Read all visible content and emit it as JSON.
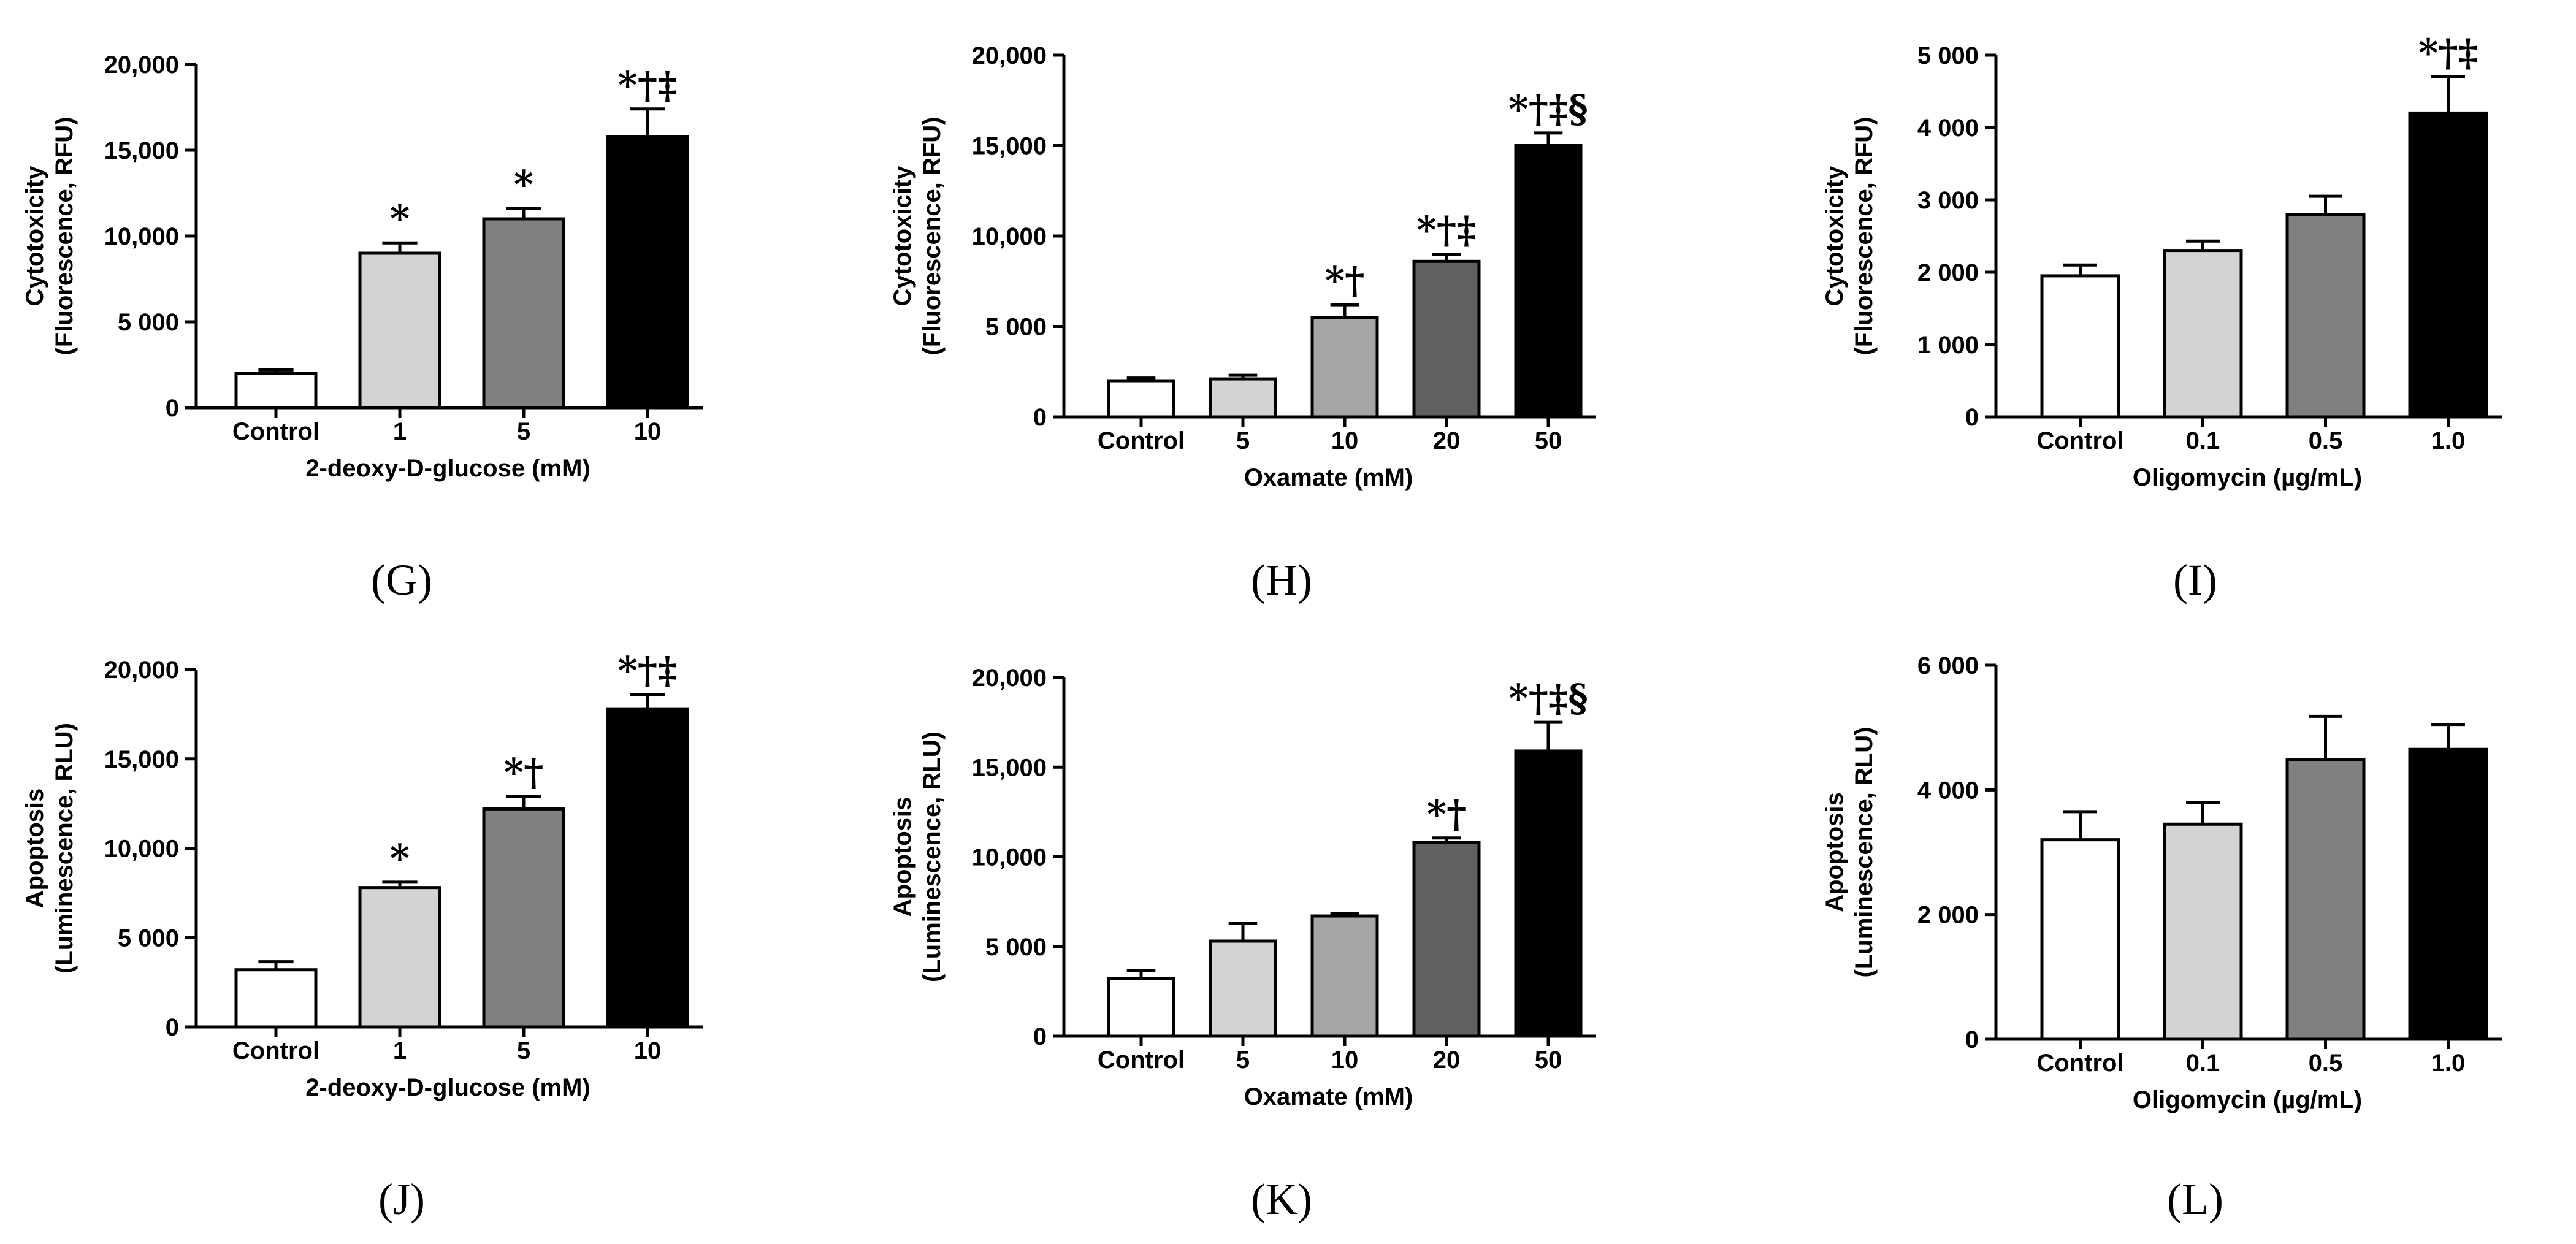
{
  "chart_data": [
    {
      "type": "bar",
      "panel": "(G)",
      "ylabel_line1": "Cytotoxicity",
      "ylabel_line2": "(Fluorescence, RFU)",
      "xlabel": "2-deoxy-D-glucose (mM)",
      "categories": [
        "Control",
        "1",
        "5",
        "10"
      ],
      "values": [
        2000,
        9000,
        11000,
        15800
      ],
      "errors": [
        200,
        600,
        600,
        1600
      ],
      "annotations": [
        "",
        "*",
        "*",
        "*†‡"
      ],
      "colors": [
        "#ffffff",
        "#d3d3d3",
        "#808080",
        "#000000"
      ],
      "ylim": [
        0,
        20000
      ],
      "yticks": [
        0,
        5000,
        10000,
        15000,
        20000
      ],
      "ytick_labels": [
        "0",
        "5 000",
        "10,000",
        "15,000",
        "20,000"
      ]
    },
    {
      "type": "bar",
      "panel": "(H)",
      "ylabel_line1": "Cytotoxicity",
      "ylabel_line2": "(Fluorescence, RFU)",
      "xlabel": "Oxamate (mM)",
      "categories": [
        "Control",
        "5",
        "10",
        "20",
        "50"
      ],
      "values": [
        2000,
        2100,
        5500,
        8600,
        15000
      ],
      "errors": [
        150,
        200,
        700,
        400,
        700
      ],
      "annotations": [
        "",
        "",
        "*†",
        "*†‡",
        "*†‡§"
      ],
      "colors": [
        "#ffffff",
        "#d3d3d3",
        "#a6a6a6",
        "#606060",
        "#000000"
      ],
      "ylim": [
        0,
        20000
      ],
      "yticks": [
        0,
        5000,
        10000,
        15000,
        20000
      ],
      "ytick_labels": [
        "0",
        "5 000",
        "10,000",
        "15,000",
        "20,000"
      ]
    },
    {
      "type": "bar",
      "panel": "(I)",
      "ylabel_line1": "Cytotoxicity",
      "ylabel_line2": "(Fluorescence, RFU)",
      "xlabel": "Oligomycin (µg/mL)",
      "categories": [
        "Control",
        "0.1",
        "0.5",
        "1.0"
      ],
      "values": [
        1950,
        2300,
        2800,
        4200
      ],
      "errors": [
        150,
        130,
        250,
        500
      ],
      "annotations": [
        "",
        "",
        "",
        "*†‡"
      ],
      "colors": [
        "#ffffff",
        "#d3d3d3",
        "#808080",
        "#000000"
      ],
      "ylim": [
        0,
        5000
      ],
      "yticks": [
        0,
        1000,
        2000,
        3000,
        4000,
        5000
      ],
      "ytick_labels": [
        "0",
        "1 000",
        "2 000",
        "3 000",
        "4 000",
        "5 000"
      ]
    },
    {
      "type": "bar",
      "panel": "(J)",
      "ylabel_line1": "Apoptosis",
      "ylabel_line2": "(Luminescence, RLU)",
      "xlabel": "2-deoxy-D-glucose (mM)",
      "categories": [
        "Control",
        "1",
        "5",
        "10"
      ],
      "values": [
        3200,
        7800,
        12200,
        17800
      ],
      "errors": [
        450,
        300,
        700,
        800
      ],
      "annotations": [
        "",
        "*",
        "*†",
        "*†‡"
      ],
      "colors": [
        "#ffffff",
        "#d3d3d3",
        "#808080",
        "#000000"
      ],
      "ylim": [
        0,
        20000
      ],
      "yticks": [
        0,
        5000,
        10000,
        15000,
        20000
      ],
      "ytick_labels": [
        "0",
        "5 000",
        "10,000",
        "15,000",
        "20,000"
      ]
    },
    {
      "type": "bar",
      "panel": "(K)",
      "ylabel_line1": "Apoptosis",
      "ylabel_line2": "(Luminescence, RLU)",
      "xlabel": "Oxamate (mM)",
      "categories": [
        "Control",
        "5",
        "10",
        "20",
        "50"
      ],
      "values": [
        3200,
        5300,
        6700,
        10800,
        15900
      ],
      "errors": [
        450,
        1000,
        150,
        250,
        1600
      ],
      "annotations": [
        "",
        "",
        "",
        "*†",
        "*†‡§"
      ],
      "colors": [
        "#ffffff",
        "#d3d3d3",
        "#a6a6a6",
        "#606060",
        "#000000"
      ],
      "ylim": [
        0,
        20000
      ],
      "yticks": [
        0,
        5000,
        10000,
        15000,
        20000
      ],
      "ytick_labels": [
        "0",
        "5 000",
        "10,000",
        "15,000",
        "20,000"
      ]
    },
    {
      "type": "bar",
      "panel": "(L)",
      "ylabel_line1": "Apoptosis",
      "ylabel_line2": "(Luminescence, RLU)",
      "xlabel": "Oligomycin (µg/mL)",
      "categories": [
        "Control",
        "0.1",
        "0.5",
        "1.0"
      ],
      "values": [
        3200,
        3450,
        4480,
        4650
      ],
      "errors": [
        450,
        350,
        700,
        400
      ],
      "annotations": [
        "",
        "",
        "",
        ""
      ],
      "colors": [
        "#ffffff",
        "#d3d3d3",
        "#808080",
        "#000000"
      ],
      "ylim": [
        0,
        6000
      ],
      "yticks": [
        0,
        2000,
        4000,
        6000
      ],
      "ytick_labels": [
        "0",
        "2 000",
        "4 000",
        "6 000"
      ]
    }
  ]
}
